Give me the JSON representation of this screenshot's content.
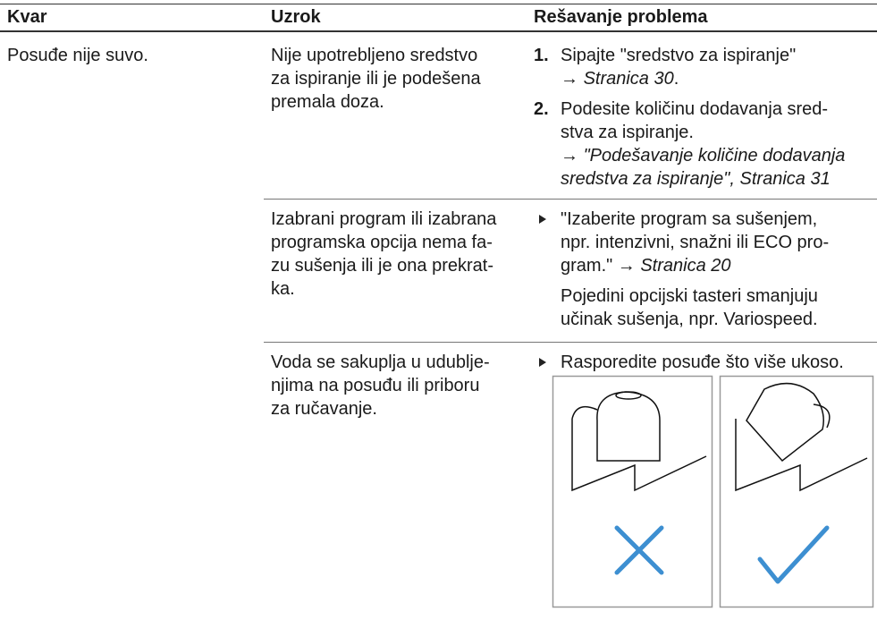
{
  "header": {
    "fault": "Kvar",
    "cause": "Uzrok",
    "solution": "Rešavanje problema"
  },
  "fault": "Posuđe nije suvo.",
  "causes": [
    {
      "lines": [
        "Nije upotrebljeno sredstvo",
        "za ispiranje ili je podešena",
        "premala doza."
      ],
      "steps": [
        {
          "number": "1.",
          "lines": [
            [
              "Sipajte \"sredstvo za ispiranje\""
            ],
            [
              "→ ",
              {
                "t": "Stranica 30",
                "i": true
              },
              "."
            ]
          ]
        },
        {
          "number": "2.",
          "lines": [
            [
              "Podesite količinu dodavanja sred-"
            ],
            [
              "stva za ispiranje."
            ],
            [
              "→ ",
              {
                "t": "\"Podešavanje količine dodavanja",
                "i": true
              }
            ],
            [
              {
                "t": "sredstva za ispiranje\", Stranica 31",
                "i": true
              }
            ]
          ]
        }
      ]
    },
    {
      "lines": [
        "Izabrani program ili izabrana",
        "programska opcija nema fa-",
        "zu sušenja ili je ona prekrat-",
        "ka."
      ],
      "steps": [
        {
          "lines": [
            [
              "\"Izaberite program sa sušenjem,"
            ],
            [
              "npr. intenzivni, snažni ili ECO pro-"
            ],
            [
              "gram.\" → ",
              {
                "t": "Stranica 20",
                "i": true
              }
            ]
          ]
        }
      ],
      "note": [
        "Pojedini opcijski tasteri smanjuju",
        "učinak sušenja, npr. Variospeed."
      ]
    },
    {
      "lines": [
        "Voda se sakuplja u udubljе-",
        "njima na posuđu ili priboru",
        "za ručavanje."
      ],
      "steps": [
        {
          "lines": [
            [
              "Rasporedite posuđe što više ukoso."
            ]
          ]
        }
      ]
    }
  ]
}
